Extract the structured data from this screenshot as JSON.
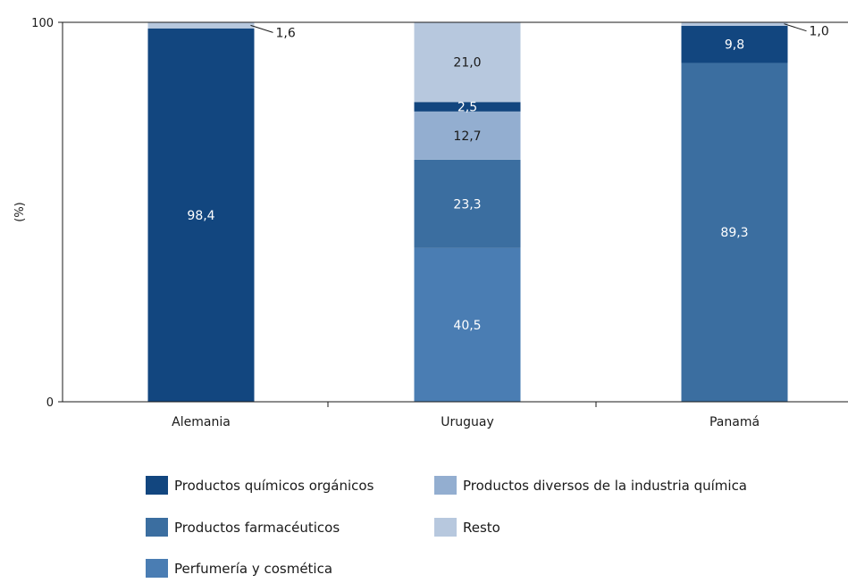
{
  "chart_data": {
    "type": "bar",
    "stacked": true,
    "ylabel": "(%)",
    "ylim": [
      0,
      100
    ],
    "yticks": [
      0,
      100
    ],
    "categories": [
      "Alemania",
      "Uruguay",
      "Panamá"
    ],
    "series": [
      {
        "name": "Perfumería y cosmética",
        "color": "#4a7db3",
        "values": [
          0,
          40.5,
          0
        ],
        "labels": [
          "",
          "40,5",
          ""
        ]
      },
      {
        "name": "Productos farmacéuticos",
        "color": "#3b6ea0",
        "values": [
          0,
          23.3,
          89.3
        ],
        "labels": [
          "",
          "23,3",
          "89,3"
        ]
      },
      {
        "name": "Productos diversos de la industria química",
        "color": "#93aed0",
        "values": [
          0,
          12.7,
          0
        ],
        "labels": [
          "",
          "12,7",
          ""
        ]
      },
      {
        "name": "Productos químicos orgánicos",
        "color": "#12467f",
        "values": [
          98.4,
          2.5,
          9.8
        ],
        "labels": [
          "98,4",
          "2,5",
          "9,8"
        ]
      },
      {
        "name": "Resto",
        "color": "#b7c8de",
        "values": [
          1.6,
          21.0,
          1.0
        ],
        "labels": [
          "1,6",
          "21,0",
          "1,0"
        ]
      }
    ],
    "legend": {
      "position": "bottom",
      "order": [
        "Productos químicos orgánicos",
        "Productos diversos de la industria química",
        "Productos farmacéuticos",
        "Resto",
        "Perfumería y cosmética"
      ]
    }
  }
}
